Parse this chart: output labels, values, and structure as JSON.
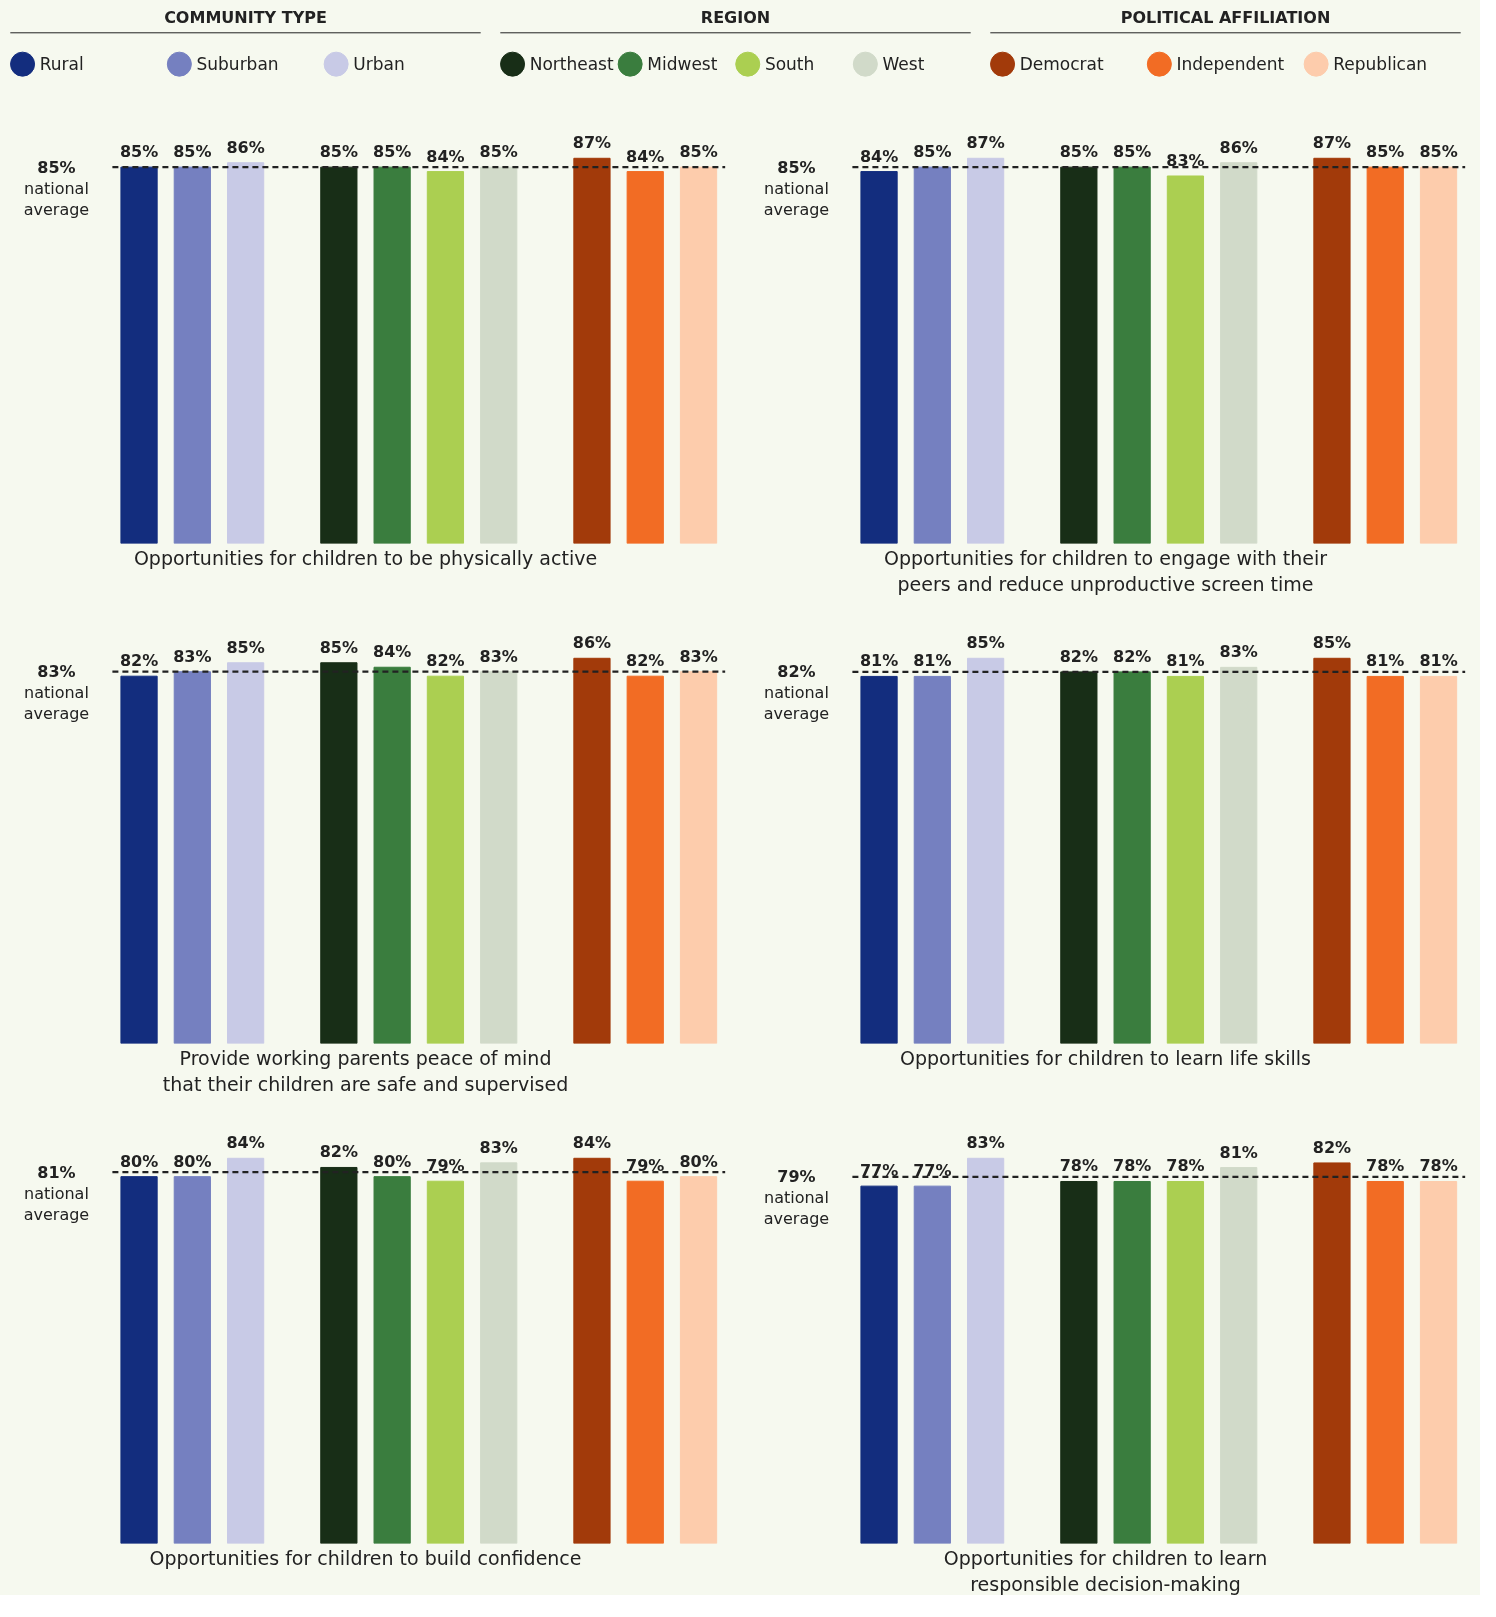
{
  "chart_data": [
    {
      "type": "bar",
      "xlabel": "Opportunities for children to be physically active",
      "categories": [
        null,
        null,
        null,
        null,
        null,
        null,
        null,
        null,
        null,
        null
      ],
      "values": [
        85,
        85,
        86,
        85,
        85,
        84,
        85,
        87,
        84,
        85
      ],
      "value_labels": [
        "85%",
        "85%",
        "86%",
        "85%",
        "85%",
        "84%",
        "85%",
        "87%",
        "84%",
        "85%"
      ],
      "colors": [
        "#132d7e",
        "#7580c0",
        "#c8cae6",
        "#182e17",
        "#3a7d3e",
        "#abcf51",
        "#d1dac9",
        "#a23a0a",
        "#f26c24",
        "#fdccac"
      ],
      "tick_labels": false,
      "ref_lines": [
        {
          "axis": "y",
          "value": 85,
          "label": "85%\nnational\naverage",
          "line_style": "dashed",
          "color": "#222222"
        }
      ]
    },
    {
      "type": "bar",
      "xlabel": "Opportunities for children to engage with their\npeers and reduce unproductive screen time",
      "categories": [
        null,
        null,
        null,
        null,
        null,
        null,
        null,
        null,
        null,
        null
      ],
      "values": [
        84,
        85,
        87,
        85,
        85,
        83,
        86,
        87,
        85,
        85
      ],
      "value_labels": [
        "84%",
        "85%",
        "87%",
        "85%",
        "85%",
        "83%",
        "86%",
        "87%",
        "85%",
        "85%"
      ],
      "colors": [
        "#132d7e",
        "#7580c0",
        "#c8cae6",
        "#182e17",
        "#3a7d3e",
        "#abcf51",
        "#d1dac9",
        "#a23a0a",
        "#f26c24",
        "#fdccac"
      ],
      "tick_labels": false,
      "ref_lines": [
        {
          "axis": "y",
          "value": 85,
          "label": "85%\nnational\naverage",
          "line_style": "dashed",
          "color": "#222222"
        }
      ]
    },
    {
      "type": "bar",
      "xlabel": "Provide working parents peace of mind\nthat their children are safe and supervised",
      "categories": [
        null,
        null,
        null,
        null,
        null,
        null,
        null,
        null,
        null,
        null
      ],
      "values": [
        82,
        83,
        85,
        85,
        84,
        82,
        83,
        86,
        82,
        83
      ],
      "value_labels": [
        "82%",
        "83%",
        "85%",
        "85%",
        "84%",
        "82%",
        "83%",
        "86%",
        "82%",
        "83%"
      ],
      "colors": [
        "#132d7e",
        "#7580c0",
        "#c8cae6",
        "#182e17",
        "#3a7d3e",
        "#abcf51",
        "#d1dac9",
        "#a23a0a",
        "#f26c24",
        "#fdccac"
      ],
      "tick_labels": false,
      "ref_lines": [
        {
          "axis": "y",
          "value": 83,
          "label": "83%\nnational\naverage",
          "line_style": "dashed",
          "color": "#222222"
        }
      ]
    },
    {
      "type": "bar",
      "xlabel": "Opportunities for children to learn life skills",
      "categories": [
        null,
        null,
        null,
        null,
        null,
        null,
        null,
        null,
        null,
        null
      ],
      "values": [
        81,
        81,
        85,
        82,
        82,
        81,
        83,
        85,
        81,
        81
      ],
      "value_labels": [
        "81%",
        "81%",
        "85%",
        "82%",
        "82%",
        "81%",
        "83%",
        "85%",
        "81%",
        "81%"
      ],
      "colors": [
        "#132d7e",
        "#7580c0",
        "#c8cae6",
        "#182e17",
        "#3a7d3e",
        "#abcf51",
        "#d1dac9",
        "#a23a0a",
        "#f26c24",
        "#fdccac"
      ],
      "tick_labels": false,
      "ref_lines": [
        {
          "axis": "y",
          "value": 82,
          "label": "82%\nnational\naverage",
          "line_style": "dashed",
          "color": "#222222"
        }
      ]
    },
    {
      "type": "bar",
      "xlabel": "Opportunities for children to build confidence",
      "categories": [
        null,
        null,
        null,
        null,
        null,
        null,
        null,
        null,
        null,
        null
      ],
      "values": [
        80,
        80,
        84,
        82,
        80,
        79,
        83,
        84,
        79,
        80
      ],
      "value_labels": [
        "80%",
        "80%",
        "84%",
        "82%",
        "80%",
        "79%",
        "83%",
        "84%",
        "79%",
        "80%"
      ],
      "colors": [
        "#132d7e",
        "#7580c0",
        "#c8cae6",
        "#182e17",
        "#3a7d3e",
        "#abcf51",
        "#d1dac9",
        "#a23a0a",
        "#f26c24",
        "#fdccac"
      ],
      "tick_labels": false,
      "ref_lines": [
        {
          "axis": "y",
          "value": 81,
          "label": "81%\nnational\naverage",
          "line_style": "dashed",
          "color": "#222222"
        }
      ]
    },
    {
      "type": "bar",
      "xlabel": "Opportunities for children to learn\nresponsible decision-making",
      "categories": [
        null,
        null,
        null,
        null,
        null,
        null,
        null,
        null,
        null,
        null
      ],
      "values": [
        77,
        77,
        83,
        78,
        78,
        78,
        81,
        82,
        78,
        78
      ],
      "value_labels": [
        "77%",
        "77%",
        "83%",
        "78%",
        "78%",
        "78%",
        "81%",
        "82%",
        "78%",
        "78%"
      ],
      "colors": [
        "#132d7e",
        "#7580c0",
        "#c8cae6",
        "#182e17",
        "#3a7d3e",
        "#abcf51",
        "#d1dac9",
        "#a23a0a",
        "#f26c24",
        "#fdccac"
      ],
      "tick_labels": false,
      "ref_lines": [
        {
          "axis": "y",
          "value": 79,
          "label": "79%\nnational\naverage",
          "line_style": "dashed",
          "color": "#222222"
        }
      ]
    },
    {
      "type": "other",
      "title": "COMMUNITY TYPE",
      "series": [
        {
          "name": "Rural",
          "color": "#132d7e"
        },
        {
          "name": "Suburban",
          "color": "#7580c0"
        },
        {
          "name": "Urban",
          "color": "#c8cae6"
        }
      ]
    },
    {
      "type": "other",
      "title": "REGION",
      "series": [
        {
          "name": "Northeast",
          "color": "#182e17"
        },
        {
          "name": "Midwest",
          "color": "#3a7d3e"
        },
        {
          "name": "South",
          "color": "#abcf51"
        },
        {
          "name": "West",
          "color": "#d1dac9"
        }
      ]
    },
    {
      "type": "other",
      "title": "POLITICAL AFFILIATION",
      "series": [
        {
          "name": "Democrat",
          "color": "#a23a0a"
        },
        {
          "name": "Independent",
          "color": "#f26c24"
        },
        {
          "name": "Republican",
          "color": "#fdccac"
        }
      ]
    }
  ]
}
